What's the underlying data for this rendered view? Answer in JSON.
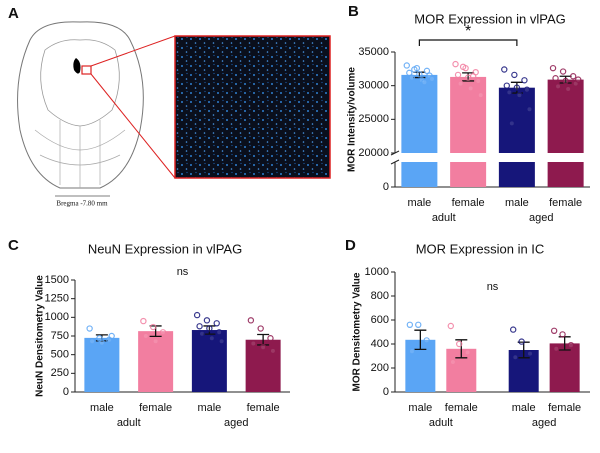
{
  "figure_a": {
    "panel_label": "A",
    "scale_label": "Bregma -7.80 mm"
  },
  "chart_data": [
    {
      "type": "bar",
      "panel_label": "B",
      "title": "MOR Expression in vlPAG",
      "y_label": "MOR Intensity/volume",
      "categories": [
        "male",
        "female",
        "male",
        "female"
      ],
      "groups": [
        "adult",
        "aged"
      ],
      "values": [
        31600,
        31300,
        29700,
        30900
      ],
      "errors": [
        400,
        600,
        800,
        500
      ],
      "points": [
        [
          33000,
          32600,
          32200,
          31900,
          31700,
          31500,
          31200,
          30800,
          31000,
          32400,
          30500
        ],
        [
          33200,
          32600,
          32000,
          31600,
          31200,
          30700,
          30300,
          29600,
          28600,
          32800,
          31400
        ],
        [
          32400,
          31600,
          30800,
          30000,
          29700,
          29400,
          29000,
          28600,
          26500,
          24400
        ],
        [
          32600,
          32100,
          31400,
          31100,
          30700,
          30300,
          29900,
          29500,
          30900
        ]
      ],
      "colors": [
        "#5aa5f5",
        "#f27ea0",
        "#16167a",
        "#8e1a4e"
      ],
      "ylim": [
        0,
        35000
      ],
      "y_break": [
        3500,
        20000
      ],
      "yticks": [
        0,
        20000,
        25000,
        30000,
        35000
      ],
      "significance": "*"
    },
    {
      "type": "bar",
      "panel_label": "C",
      "title": "NeuN Expression in vlPAG",
      "y_label": "NeuN Densitometry Value",
      "categories": [
        "male",
        "female",
        "male",
        "female"
      ],
      "groups": [
        "adult",
        "aged"
      ],
      "values": [
        725,
        815,
        830,
        700
      ],
      "errors": [
        40,
        70,
        55,
        70
      ],
      "points": [
        [
          850,
          720,
          700,
          680,
          660,
          750
        ],
        [
          950,
          870,
          800,
          750,
          680
        ],
        [
          1030,
          960,
          920,
          880,
          850,
          800,
          780,
          720,
          680
        ],
        [
          960,
          850,
          720,
          650,
          600,
          550
        ]
      ],
      "colors": [
        "#5aa5f5",
        "#f27ea0",
        "#16167a",
        "#8e1a4e"
      ],
      "ylim": [
        0,
        1500
      ],
      "yticks": [
        0,
        250,
        500,
        750,
        1000,
        1250,
        1500
      ],
      "annotation": "ns"
    },
    {
      "type": "bar",
      "panel_label": "D",
      "title": "MOR Expression in IC",
      "y_label": "MOR Densitometry Value",
      "categories": [
        "male",
        "female",
        "male",
        "female"
      ],
      "groups": [
        "adult",
        "aged"
      ],
      "values": [
        435,
        360,
        350,
        405
      ],
      "errors": [
        80,
        75,
        65,
        55
      ],
      "points": [
        [
          560,
          560,
          430,
          340
        ],
        [
          550,
          400,
          330,
          250
        ],
        [
          520,
          420,
          320,
          290
        ],
        [
          510,
          480,
          390,
          360
        ]
      ],
      "colors": [
        "#5aa5f5",
        "#f27ea0",
        "#16167a",
        "#8e1a4e"
      ],
      "ylim": [
        0,
        1000
      ],
      "yticks": [
        0,
        200,
        400,
        600,
        800,
        1000
      ],
      "grouped_gap": true,
      "annotation": "ns"
    }
  ]
}
